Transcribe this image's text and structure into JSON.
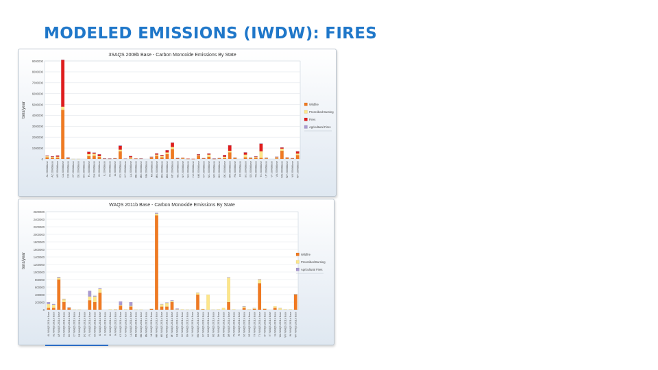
{
  "slide": {
    "title": "MODELED EMISSIONS (IWDW): FIRES"
  },
  "chart_data": [
    {
      "type": "bar",
      "stacked": true,
      "title": "3SAQS 2008b Base - Carbon Monoxide Emissions By State",
      "ylabel": "tons/year",
      "ylim": [
        0,
        9000000
      ],
      "yticks": [
        0,
        1000000,
        2000000,
        3000000,
        4000000,
        5000000,
        6000000,
        7000000,
        8000000,
        9000000
      ],
      "grid": true,
      "legend_position": "right",
      "category_suffix": "2008bBase",
      "categories": [
        "AL",
        "AZ",
        "AR",
        "CA",
        "CO",
        "CT",
        "DE",
        "DC",
        "FL",
        "GA",
        "ID",
        "IL",
        "IN",
        "IA",
        "KS",
        "KY",
        "LA",
        "ME",
        "MD",
        "MA",
        "MI",
        "MN",
        "MS",
        "MO",
        "MT",
        "NE",
        "NV",
        "NH",
        "NJ",
        "NM",
        "NY",
        "NC",
        "ND",
        "OH",
        "OK",
        "OR",
        "PA",
        "RI",
        "SC",
        "SD",
        "TN",
        "TX",
        "UT",
        "VT",
        "VA",
        "WA",
        "WV",
        "WI",
        "WY"
      ],
      "series": [
        {
          "name": "Wildfire",
          "color": "#f07a22",
          "values": [
            150000,
            100000,
            120000,
            4500000,
            60000,
            0,
            0,
            0,
            250000,
            300000,
            180000,
            20000,
            15000,
            30000,
            700000,
            0,
            30000,
            20000,
            20000,
            0,
            100000,
            300000,
            150000,
            450000,
            900000,
            30000,
            50000,
            10000,
            0,
            250000,
            40000,
            200000,
            10000,
            40000,
            80000,
            600000,
            60000,
            0,
            150000,
            60000,
            100000,
            100000,
            50000,
            0,
            50000,
            750000,
            60000,
            30000,
            350000
          ]
        },
        {
          "name": "Prescribed Burning",
          "color": "#fde68a",
          "values": [
            100000,
            80000,
            90000,
            300000,
            30000,
            5000,
            5000,
            0,
            200000,
            180000,
            80000,
            10000,
            10000,
            15000,
            150000,
            20000,
            120000,
            10000,
            10000,
            0,
            50000,
            100000,
            120000,
            150000,
            200000,
            20000,
            40000,
            10000,
            5000,
            80000,
            20000,
            200000,
            5000,
            20000,
            120000,
            150000,
            40000,
            0,
            250000,
            40000,
            80000,
            600000,
            40000,
            0,
            100000,
            200000,
            60000,
            20000,
            150000
          ]
        },
        {
          "name": "Fires",
          "color": "#e01d1d",
          "values": [
            50000,
            60000,
            100000,
            4300000,
            50000,
            0,
            0,
            0,
            200000,
            100000,
            150000,
            10000,
            10000,
            10000,
            350000,
            10000,
            100000,
            10000,
            10000,
            0,
            50000,
            100000,
            80000,
            200000,
            400000,
            15000,
            30000,
            5000,
            5000,
            100000,
            10000,
            100000,
            5000,
            20000,
            150000,
            500000,
            30000,
            0,
            200000,
            20000,
            50000,
            700000,
            30000,
            0,
            50000,
            100000,
            30000,
            20000,
            200000
          ]
        },
        {
          "name": "Agricultural Fires",
          "color": "#a99ad0",
          "values": [
            10000,
            10000,
            20000,
            20000,
            5000,
            0,
            0,
            0,
            20000,
            10000,
            30000,
            20000,
            10000,
            20000,
            50000,
            5000,
            30000,
            0,
            5000,
            0,
            5000,
            20000,
            20000,
            20000,
            10000,
            40000,
            0,
            0,
            0,
            5000,
            5000,
            10000,
            30000,
            5000,
            20000,
            20000,
            5000,
            0,
            10000,
            20000,
            10000,
            30000,
            10000,
            0,
            5000,
            20000,
            0,
            10000,
            5000
          ]
        }
      ]
    },
    {
      "type": "bar",
      "stacked": true,
      "title": "WAQS 2011b Base - Carbon Monoxide Emissions By State",
      "ylabel": "tons/year",
      "ylim": [
        0,
        2600000
      ],
      "yticks": [
        0,
        200000,
        400000,
        600000,
        800000,
        1000000,
        1200000,
        1400000,
        1600000,
        1800000,
        2000000,
        2200000,
        2400000,
        2600000
      ],
      "grid": true,
      "legend_position": "right",
      "category_suffix": "WAQS 2011b Base",
      "categories": [
        "AL",
        "AZ",
        "AR",
        "CA",
        "CO",
        "CT",
        "DE",
        "DC",
        "FL",
        "GA",
        "ID",
        "IL",
        "IN",
        "IA",
        "KS",
        "KY",
        "LA",
        "ME",
        "MD",
        "MA",
        "MI",
        "MN",
        "MS",
        "MO",
        "MT",
        "NE",
        "NV",
        "NH",
        "NJ",
        "NM",
        "NY",
        "NC",
        "ND",
        "OH",
        "OK",
        "OR",
        "PA",
        "RI",
        "SC",
        "SD",
        "TN",
        "TX",
        "UT",
        "VT",
        "VA",
        "WA",
        "WV",
        "WI",
        "WY"
      ],
      "series": [
        {
          "name": "Wildfire",
          "color": "#f07a22",
          "values": [
            50000,
            50000,
            800000,
            200000,
            50000,
            0,
            0,
            0,
            250000,
            200000,
            450000,
            0,
            0,
            5000,
            100000,
            0,
            80000,
            0,
            0,
            0,
            20000,
            2500000,
            80000,
            80000,
            200000,
            0,
            0,
            0,
            0,
            400000,
            10000,
            0,
            0,
            0,
            0,
            200000,
            0,
            0,
            50000,
            0,
            20000,
            700000,
            20000,
            0,
            50000,
            0,
            0,
            0,
            400000
          ]
        },
        {
          "name": "Prescribed Burning",
          "color": "#fde68a",
          "values": [
            100000,
            80000,
            50000,
            80000,
            10000,
            5000,
            5000,
            0,
            100000,
            150000,
            100000,
            0,
            10000,
            5000,
            20000,
            10000,
            20000,
            5000,
            5000,
            0,
            5000,
            50000,
            60000,
            100000,
            30000,
            10000,
            10000,
            5000,
            5000,
            50000,
            10000,
            400000,
            5000,
            10000,
            50000,
            650000,
            10000,
            0,
            30000,
            10000,
            20000,
            100000,
            10000,
            0,
            40000,
            40000,
            10000,
            10000,
            10000
          ]
        },
        {
          "name": "Agricultural Fires",
          "color": "#a99ad0",
          "values": [
            50000,
            20000,
            20000,
            10000,
            5000,
            0,
            0,
            0,
            150000,
            20000,
            20000,
            0,
            0,
            0,
            100000,
            0,
            100000,
            0,
            0,
            0,
            0,
            20000,
            10000,
            10000,
            20000,
            20000,
            0,
            0,
            0,
            5000,
            0,
            0,
            0,
            0,
            0,
            10000,
            0,
            0,
            10000,
            0,
            5000,
            10000,
            0,
            0,
            0,
            5000,
            0,
            0,
            5000
          ]
        }
      ]
    }
  ]
}
